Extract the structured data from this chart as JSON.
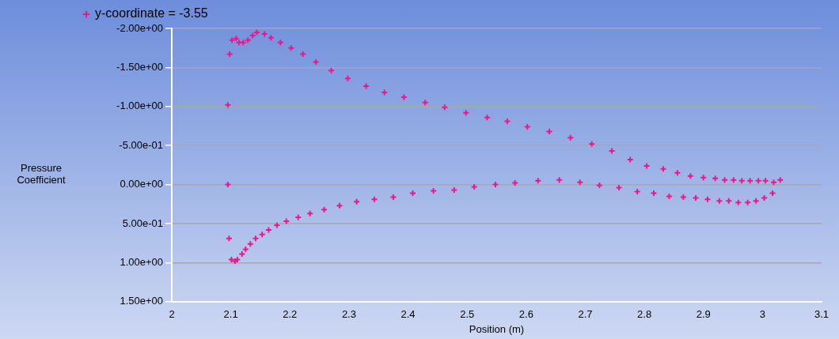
{
  "chart_data": {
    "type": "scatter",
    "xlabel": "Position (m)",
    "ylabel": "Pressure Coefficient",
    "legend": "top left",
    "marker": "cross",
    "grid": "y",
    "xlim": [
      2,
      3.1
    ],
    "xticks": [
      2,
      2.1,
      2.2,
      2.3,
      2.4,
      2.5,
      2.6,
      2.7,
      2.8,
      2.9,
      3,
      3.1
    ],
    "ylim": [
      1.5,
      -2
    ],
    "yticks": [
      {
        "value": -2,
        "label": "-2.00e+00"
      },
      {
        "value": -1.5,
        "label": "-1.50e+00"
      },
      {
        "value": -1,
        "label": "-1.00e+00"
      },
      {
        "value": -0.5,
        "label": "-5.00e-01"
      },
      {
        "value": 0,
        "label": "0.00e+00"
      },
      {
        "value": 0.5,
        "label": "5.00e-01"
      },
      {
        "value": 1,
        "label": "1.00e+00"
      },
      {
        "value": 1.5,
        "label": "1.50e+00"
      }
    ],
    "series": [
      {
        "name": "y-coordinate = -3.55",
        "color": "#f0148c",
        "x": [
          2.095,
          2.098,
          2.102,
          2.109,
          2.114,
          2.121,
          2.129,
          2.137,
          2.144,
          2.157,
          2.168,
          2.184,
          2.202,
          2.222,
          2.244,
          2.27,
          2.298,
          2.329,
          2.36,
          2.393,
          2.429,
          2.462,
          2.498,
          2.534,
          2.568,
          2.602,
          2.639,
          2.675,
          2.711,
          2.745,
          2.776,
          2.804,
          2.832,
          2.856,
          2.878,
          2.9,
          2.92,
          2.936,
          2.951,
          2.965,
          2.979,
          2.993,
          3.005,
          3.019,
          3.03,
          2.095,
          2.097,
          2.101,
          2.107,
          2.111,
          2.119,
          2.125,
          2.133,
          2.142,
          2.153,
          2.164,
          2.178,
          2.194,
          2.214,
          2.234,
          2.258,
          2.284,
          2.313,
          2.343,
          2.375,
          2.408,
          2.443,
          2.478,
          2.512,
          2.548,
          2.581,
          2.62,
          2.656,
          2.691,
          2.724,
          2.757,
          2.788,
          2.816,
          2.842,
          2.866,
          2.887,
          2.907,
          2.927,
          2.943,
          2.959,
          2.975,
          2.989,
          3.003,
          3.017
        ],
        "values": [
          -1.02,
          -1.67,
          -1.85,
          -1.87,
          -1.82,
          -1.82,
          -1.85,
          -1.91,
          -1.95,
          -1.93,
          -1.88,
          -1.82,
          -1.75,
          -1.67,
          -1.57,
          -1.46,
          -1.36,
          -1.26,
          -1.18,
          -1.12,
          -1.05,
          -0.99,
          -0.92,
          -0.86,
          -0.81,
          -0.74,
          -0.68,
          -0.6,
          -0.52,
          -0.43,
          -0.32,
          -0.24,
          -0.2,
          -0.15,
          -0.11,
          -0.09,
          -0.08,
          -0.06,
          -0.06,
          -0.05,
          -0.05,
          -0.05,
          -0.05,
          -0.03,
          -0.06,
          0,
          0.69,
          0.96,
          0.98,
          0.96,
          0.89,
          0.83,
          0.76,
          0.69,
          0.64,
          0.58,
          0.52,
          0.47,
          0.42,
          0.37,
          0.32,
          0.27,
          0.22,
          0.19,
          0.16,
          0.11,
          0.08,
          0.07,
          0.03,
          0,
          -0.02,
          -0.05,
          -0.06,
          -0.03,
          0.01,
          0.04,
          0.09,
          0.11,
          0.15,
          0.16,
          0.17,
          0.19,
          0.21,
          0.21,
          0.23,
          0.23,
          0.21,
          0.17,
          0.11
        ]
      }
    ]
  }
}
